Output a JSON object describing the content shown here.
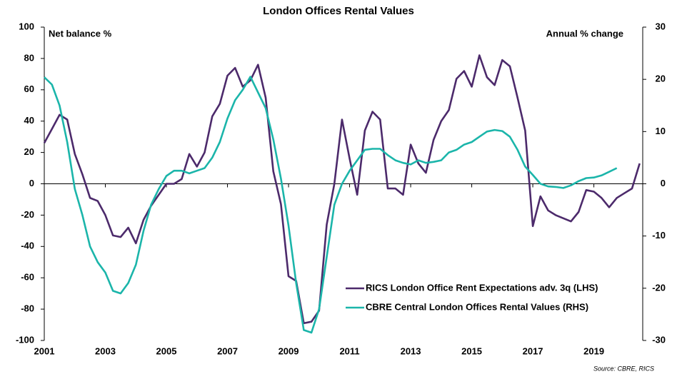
{
  "chart_data": {
    "type": "line",
    "title": "London Offices Rental Values",
    "y_label": "Net balance %",
    "y2_label": "Annual % change",
    "source": "Source: CBRE, RICS",
    "legend": "lower right",
    "x": [
      2001,
      2001.25,
      2001.5,
      2001.75,
      2002,
      2002.25,
      2002.5,
      2002.75,
      2003,
      2003.25,
      2003.5,
      2003.75,
      2004,
      2004.25,
      2004.5,
      2004.75,
      2005,
      2005.25,
      2005.5,
      2005.75,
      2006,
      2006.25,
      2006.5,
      2006.75,
      2007,
      2007.25,
      2007.5,
      2007.75,
      2008,
      2008.25,
      2008.5,
      2008.75,
      2009,
      2009.25,
      2009.5,
      2009.75,
      2010,
      2010.25,
      2010.5,
      2010.75,
      2011,
      2011.25,
      2011.5,
      2011.75,
      2012,
      2012.25,
      2012.5,
      2012.75,
      2013,
      2013.25,
      2013.5,
      2013.75,
      2014,
      2014.25,
      2014.5,
      2014.75,
      2015,
      2015.25,
      2015.5,
      2015.75,
      2016,
      2016.25,
      2016.5,
      2016.75,
      2017,
      2017.25,
      2017.5,
      2017.75,
      2018,
      2018.25,
      2018.5,
      2018.75,
      2019,
      2019.25,
      2019.5,
      2019.75,
      2020,
      2020.25,
      2020.5
    ],
    "xlim": [
      2001,
      2020.6
    ],
    "xticks": [
      2001,
      2003,
      2005,
      2007,
      2009,
      2011,
      2013,
      2015,
      2017,
      2019
    ],
    "ylim": [
      -100,
      100
    ],
    "yticks": [
      100,
      80,
      60,
      40,
      20,
      0,
      -20,
      -40,
      -60,
      -80,
      -100
    ],
    "y2lim": [
      -30,
      30
    ],
    "y2ticks": [
      30,
      20,
      10,
      0,
      -10,
      -20,
      -30
    ],
    "series": [
      {
        "name": "RICS London Office Rent Expectations adv. 3q (LHS)",
        "color": "#4c2a6b",
        "values": [
          26,
          35,
          44,
          41,
          19,
          6,
          -9,
          -11,
          -20,
          -33,
          -34,
          -28,
          -38,
          -23,
          -14,
          -7,
          0,
          0,
          3,
          19,
          11,
          20,
          43,
          51,
          69,
          74,
          62,
          66,
          76,
          55,
          8,
          -13,
          -59,
          -62,
          -89,
          -88,
          -81,
          -26,
          0,
          41,
          16,
          -7,
          34,
          46,
          41,
          -3,
          -3,
          -7,
          25,
          13,
          7,
          28,
          40,
          47,
          67,
          72,
          62,
          82,
          68,
          63,
          79,
          75,
          55,
          34,
          -27,
          -8,
          -17,
          -20,
          -22,
          -24,
          -18,
          -4,
          -5,
          -9,
          -15,
          -9,
          -6,
          -3,
          13
        ]
      },
      {
        "name": "CBRE Central London Offices Rental Values (RHS)",
        "color": "#1bb5aa",
        "axis": "y2",
        "values": [
          20.4,
          19,
          15,
          8,
          -1,
          -6,
          -12,
          -15,
          -17,
          -20.5,
          -21,
          -19,
          -15.5,
          -9,
          -4,
          -1,
          1.5,
          2.5,
          2.5,
          2,
          2.5,
          3,
          5,
          8,
          12.5,
          16,
          18,
          20.5,
          17.5,
          14.5,
          8.5,
          1,
          -8,
          -19,
          -28,
          -28.5,
          -24,
          -14,
          -4,
          0,
          2.5,
          4.5,
          6.5,
          6.7,
          6.7,
          5.5,
          4.5,
          4,
          3.7,
          4.5,
          4,
          4.2,
          4.5,
          6,
          6.5,
          7.5,
          8,
          9,
          10,
          10.3,
          10.1,
          9,
          6.5,
          3.3,
          1.7,
          0,
          -0.5,
          -0.6,
          -0.8,
          -0.3,
          0.5,
          1.1,
          1.2,
          1.6,
          2.3,
          3,
          null,
          null,
          null
        ]
      }
    ]
  }
}
